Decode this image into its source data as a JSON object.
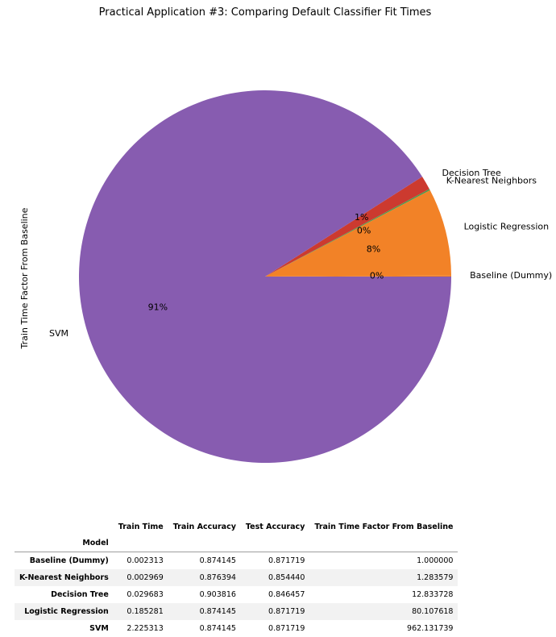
{
  "chart_data": {
    "type": "pie",
    "title": "Practical Application #3: Comparing Default Classifier Fit Times",
    "ylabel": "Train Time Factor From Baseline",
    "slices": [
      {
        "label": "Baseline (Dummy)",
        "value": 1.0,
        "pct": "0%",
        "color": "#f28227"
      },
      {
        "label": "Logistic Regression",
        "value": 80.107618,
        "pct": "8%",
        "color": "#f28227"
      },
      {
        "label": "K-Nearest Neighbors",
        "value": 1.283579,
        "pct": "0%",
        "color": "#4f9a4c"
      },
      {
        "label": "Decision Tree",
        "value": 12.833728,
        "pct": "1%",
        "color": "#cc3a2f"
      },
      {
        "label": "SVM",
        "value": 962.131739,
        "pct": "91%",
        "color": "#875cb0"
      }
    ]
  },
  "table": {
    "columns": [
      "Train Time",
      "Train Accuracy",
      "Test Accuracy",
      "Train Time Factor From Baseline"
    ],
    "index_name": "Model",
    "rows": [
      {
        "model": "Baseline (Dummy)",
        "values": [
          "0.002313",
          "0.874145",
          "0.871719",
          "1.000000"
        ]
      },
      {
        "model": "K-Nearest Neighbors",
        "values": [
          "0.002969",
          "0.876394",
          "0.854440",
          "1.283579"
        ]
      },
      {
        "model": "Decision Tree",
        "values": [
          "0.029683",
          "0.903816",
          "0.846457",
          "12.833728"
        ]
      },
      {
        "model": "Logistic Regression",
        "values": [
          "0.185281",
          "0.874145",
          "0.871719",
          "80.107618"
        ]
      },
      {
        "model": "SVM",
        "values": [
          "2.225313",
          "0.874145",
          "0.871719",
          "962.131739"
        ]
      }
    ]
  }
}
